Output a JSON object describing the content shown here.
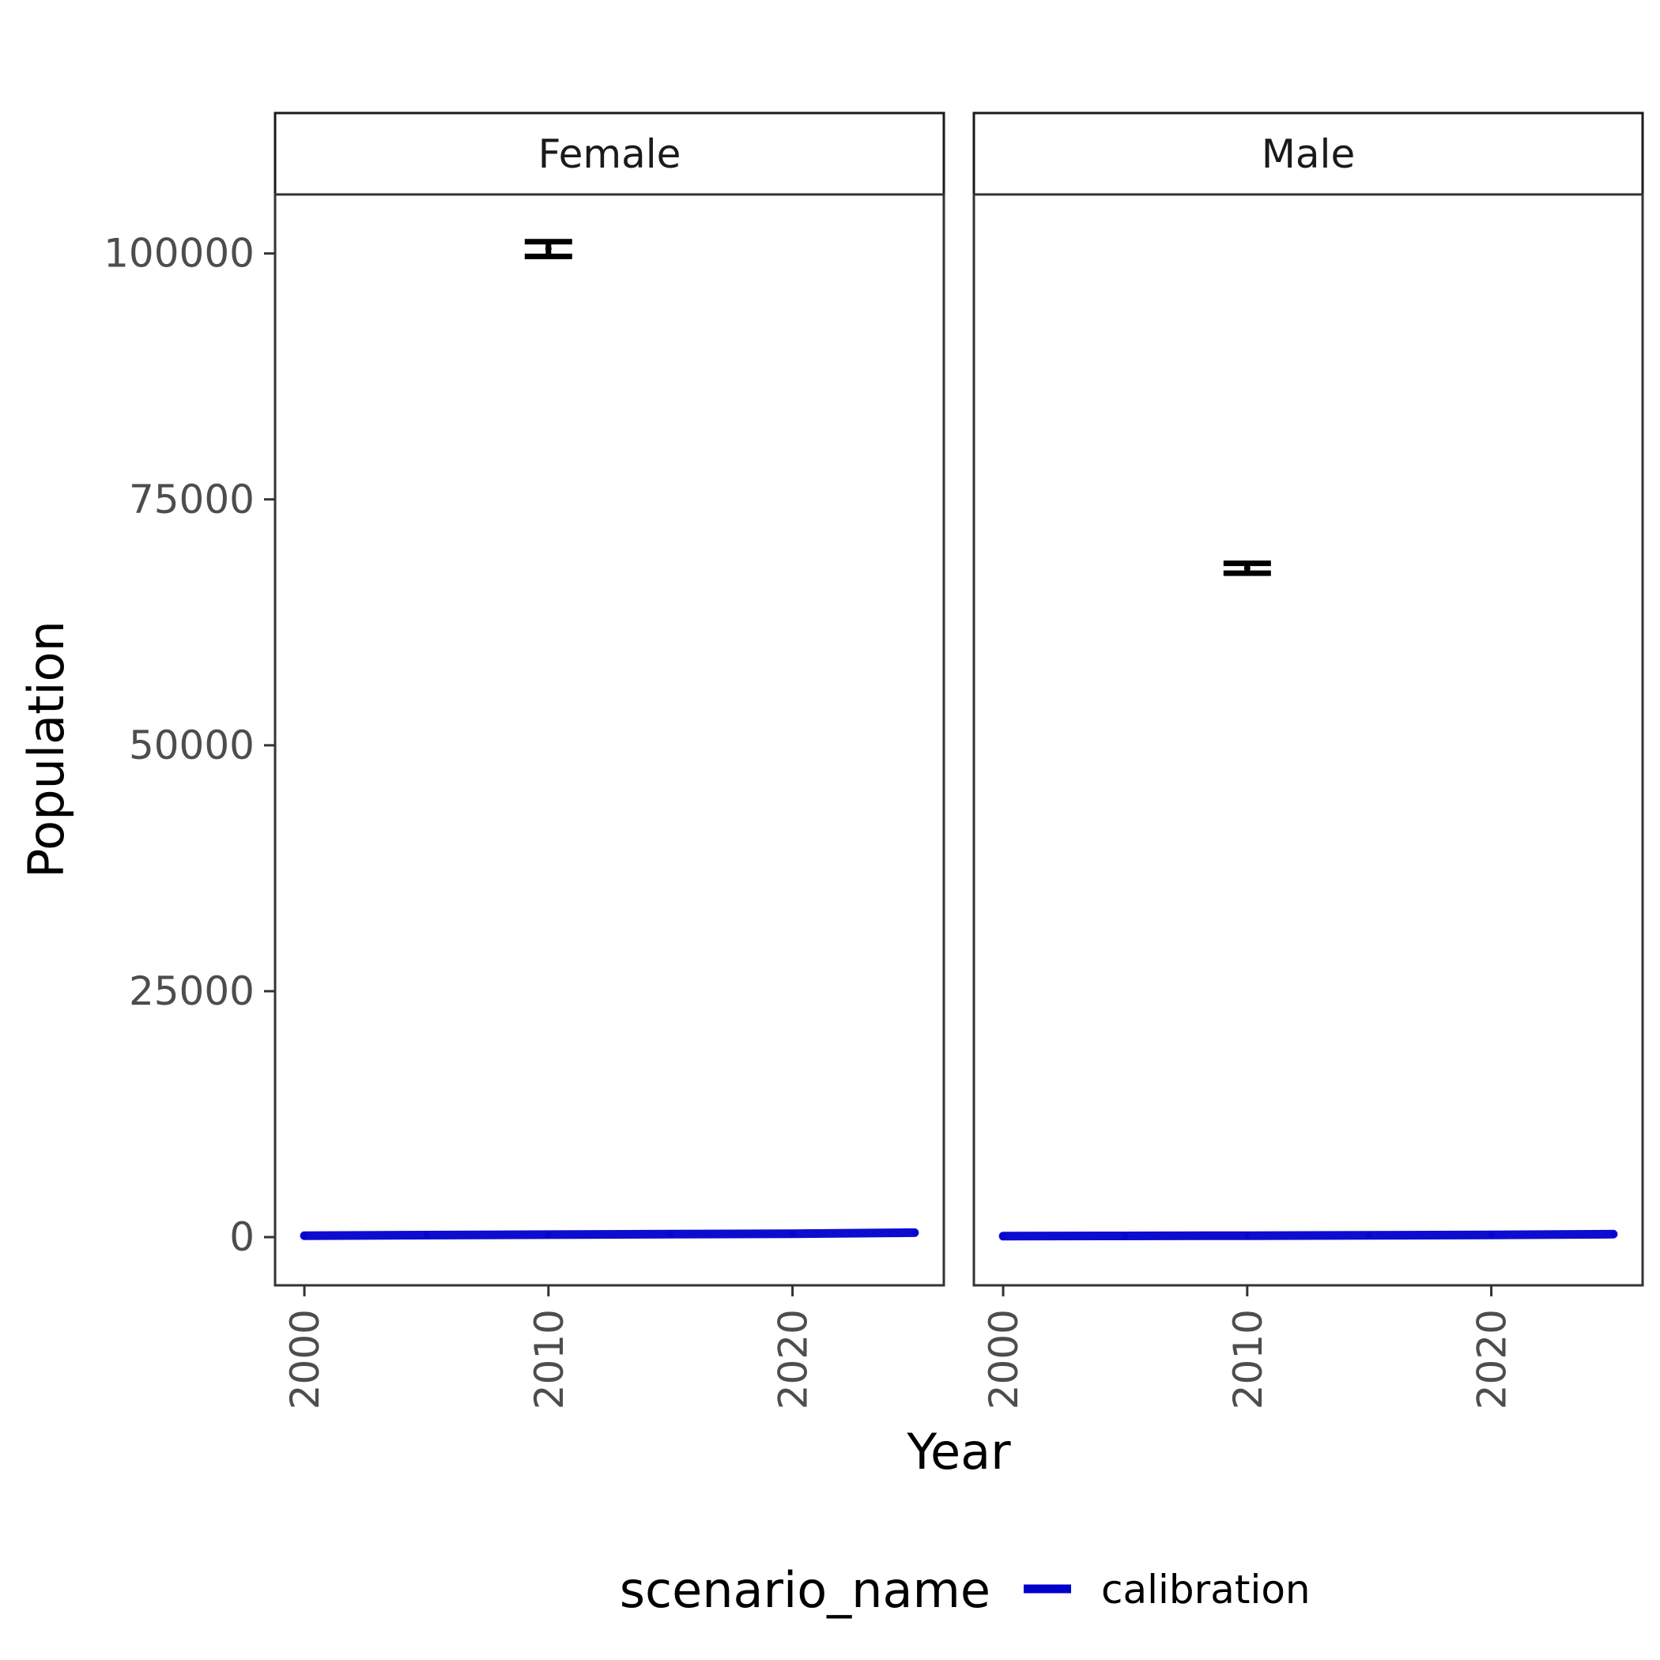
{
  "chart_data": {
    "type": "line",
    "xlabel": "Year",
    "ylabel": "Population",
    "x_ticks": [
      2000,
      2010,
      2020
    ],
    "y_ticks": [
      0,
      25000,
      50000,
      75000,
      100000
    ],
    "xlim": [
      1998.8,
      2026.2
    ],
    "ylim": [
      -4900,
      106000
    ],
    "grid": false,
    "legend": {
      "title": "scenario_name",
      "position": "bottom",
      "entries": [
        {
          "label": "calibration",
          "color": "#0000cd"
        }
      ]
    },
    "panels": [
      {
        "label": "Female",
        "series": [
          {
            "name": "calibration",
            "color": "#0000cd",
            "x": [
              2000,
              2005,
              2010,
              2015,
              2020,
              2025
            ],
            "y": [
              150,
              200,
              250,
              300,
              350,
              450
            ]
          }
        ],
        "observations": [
          {
            "x": 2010,
            "y": 100500,
            "ymin": 99700,
            "ymax": 101200
          }
        ]
      },
      {
        "label": "Male",
        "series": [
          {
            "name": "calibration",
            "color": "#0000cd",
            "x": [
              2000,
              2005,
              2010,
              2015,
              2020,
              2025
            ],
            "y": [
              100,
              120,
              150,
              180,
              220,
              300
            ]
          }
        ],
        "observations": [
          {
            "x": 2010,
            "y": 68000,
            "ymin": 67500,
            "ymax": 68500
          }
        ]
      }
    ]
  }
}
